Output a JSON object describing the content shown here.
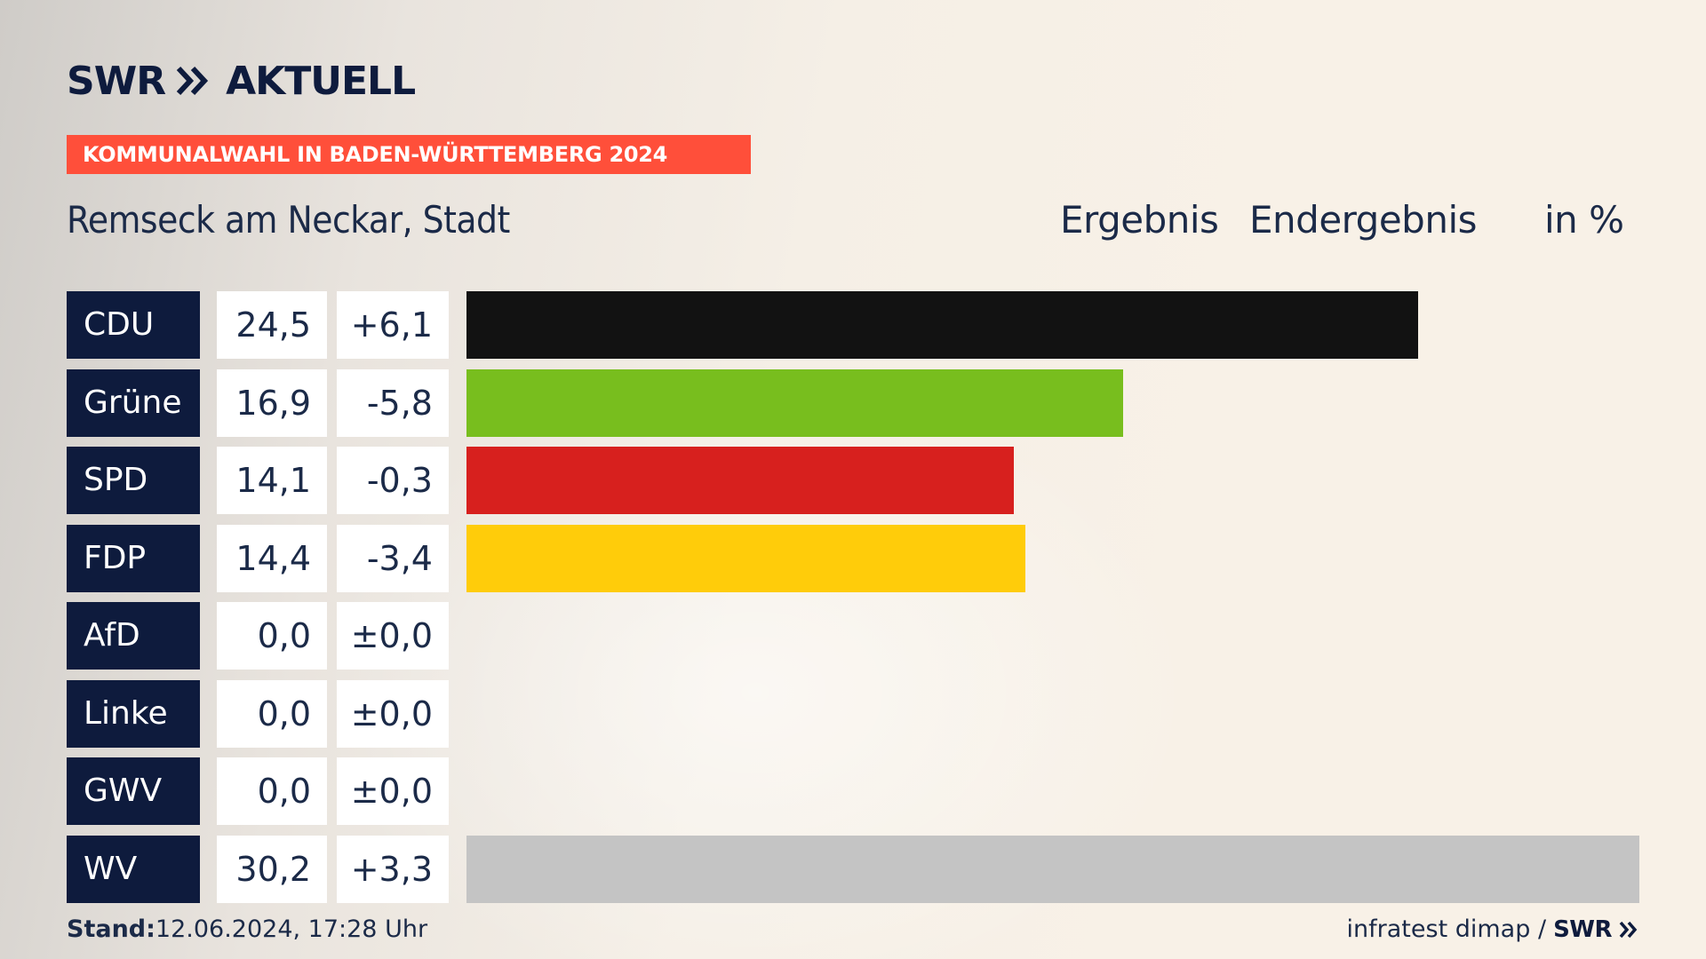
{
  "header": {
    "logo_swr": "SWR",
    "logo_aktuell": "AKTUELL",
    "banner": "KOMMUNALWAHL IN BADEN-WÜRTTEMBERG 2024",
    "place": "Remseck am Neckar, Stadt",
    "col_ergebnis": "Ergebnis",
    "col_status": "Endergebnis",
    "col_unit": "in %"
  },
  "footer": {
    "stand_label": "Stand:",
    "stand_value": "12.06.2024, 17:28 Uhr",
    "source": "infratest dimap /",
    "source_logo": "SWR"
  },
  "chart_data": {
    "type": "bar",
    "orientation": "horizontal",
    "title": "Remseck am Neckar, Stadt",
    "unit": "in %",
    "xlim": [
      0,
      30.2
    ],
    "categories": [
      "CDU",
      "Grüne",
      "SPD",
      "FDP",
      "AfD",
      "Linke",
      "GWV",
      "WV"
    ],
    "values": [
      24.5,
      16.9,
      14.1,
      14.4,
      0.0,
      0.0,
      0.0,
      30.2
    ],
    "value_labels": [
      "24,5",
      "16,9",
      "14,1",
      "14,4",
      "0,0",
      "0,0",
      "0,0",
      "30,2"
    ],
    "diff_labels": [
      "+6,1",
      "-5,8",
      "-0,3",
      "-3,4",
      "±0,0",
      "±0,0",
      "±0,0",
      "+3,3"
    ],
    "colors": [
      "#121212",
      "#78be1e",
      "#d7201e",
      "#ffcc0a",
      "#009ee0",
      "#be3075",
      "#c4c4c4",
      "#c4c4c4"
    ]
  }
}
